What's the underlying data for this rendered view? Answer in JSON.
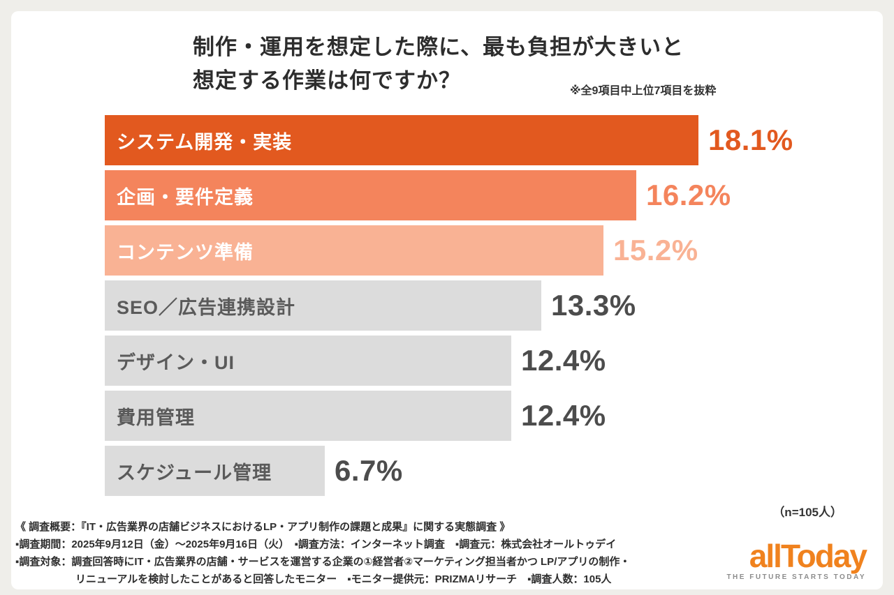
{
  "header": {
    "title_line1": "制作・運用を想定した際に、最も負担が大きいと",
    "title_line2": "想定する作業は何ですか？",
    "note": "※全9項目中上位7項目を抜粋"
  },
  "chart_data": {
    "type": "bar",
    "orientation": "horizontal",
    "title": "制作・運用を想定した際に、最も負担が大きいと想定する作業は何ですか？",
    "note": "※全9項目中上位7項目を抜粋",
    "categories": [
      "システム開発・実装",
      "企画・要件定義",
      "コンテンツ準備",
      "SEO／広告連携設計",
      "デザイン・UI",
      "費用管理",
      "スケジュール管理"
    ],
    "values": [
      18.1,
      16.2,
      15.2,
      13.3,
      12.4,
      12.4,
      6.7
    ],
    "value_labels": [
      "18.1%",
      "16.2%",
      "15.2%",
      "13.3%",
      "12.4%",
      "12.4%",
      "6.7%"
    ],
    "bar_colors": [
      "#E2591F",
      "#F4845C",
      "#F9B294",
      "#DCDCDC",
      "#DCDCDC",
      "#DCDCDC",
      "#DCDCDC"
    ],
    "label_colors": [
      "#FFFFFF",
      "#FFFFFF",
      "#FFFFFF",
      "#5A5A5A",
      "#5A5A5A",
      "#5A5A5A",
      "#5A5A5A"
    ],
    "value_text_colors": [
      "#E2591F",
      "#F4845C",
      "#F9B294",
      "#4C4C4C",
      "#4C4C4C",
      "#4C4C4C",
      "#4C4C4C"
    ],
    "xlim": [
      0,
      18.1
    ],
    "legend": "none",
    "grid": false,
    "sample_label": "（n=105人）"
  },
  "footer": {
    "lines": [
      "《 調査概要：『IT・広告業界の店舗ビジネスにおけるLP・アプリ制作の課題と成果』に関する実態調査 》",
      "▪調査期間：2025年9月12日（金）〜2025年9月16日（火）　▪調査方法：インターネット調査　▪調査元：株式会社オールトゥデイ",
      "▪調査対象：調査回答時にIT・広告業界の店舗・サービスを運営する企業の①経営者②マーケティング担当者かつ LP/アプリの制作・",
      "リニューアルを検討したことがあると回答したモニター　▪モニター提供元：PRIZMAリサーチ　▪調査人数：105人"
    ]
  },
  "logo": {
    "text": "allToday",
    "tagline": "THE FUTURE STARTS TODAY",
    "color": "#F0821E",
    "tagline_color": "#8C8C8C"
  }
}
